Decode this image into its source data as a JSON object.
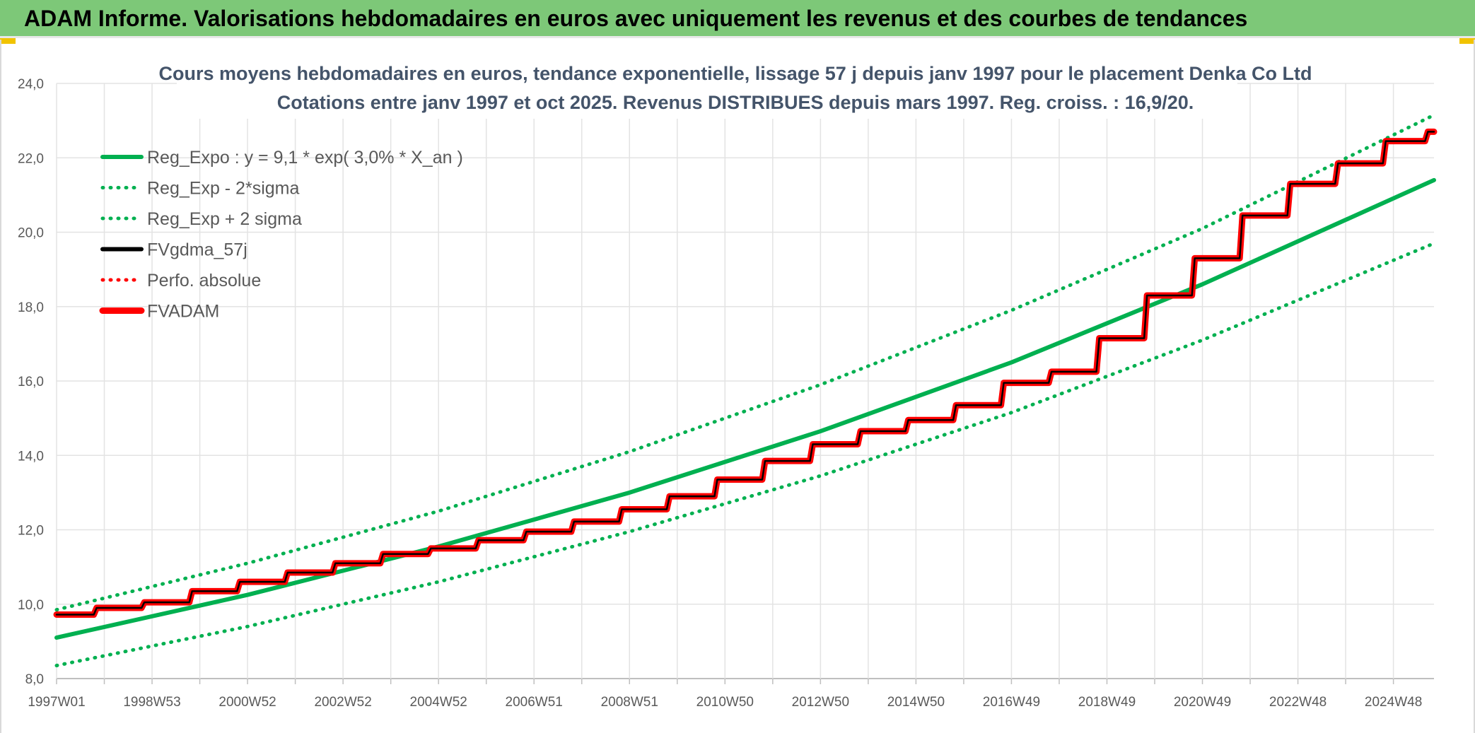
{
  "header": {
    "title": "ADAM Informe. Valorisations hebdomadaires en euros avec uniquement les revenus et des courbes de tendances"
  },
  "chart_data": {
    "type": "line",
    "title_line1": "Cours moyens hebdomadaires en euros, tendance exponentielle, lissage 57 j depuis janv 1997 pour le placement Denka Co Ltd",
    "title_line2": "Cotations entre janv 1997 et oct 2025. Revenus DISTRIBUES depuis mars 1997. Reg. croiss. : 16,9/20.",
    "xlabel": "",
    "ylabel": "",
    "ylim": [
      8.0,
      24.0
    ],
    "yticks": [
      "8,0",
      "10,0",
      "12,0",
      "14,0",
      "16,0",
      "18,0",
      "20,0",
      "22,0",
      "24,0"
    ],
    "xticks": [
      "1997W01",
      "1998W53",
      "2000W52",
      "2002W52",
      "2004W52",
      "2006W51",
      "2008W51",
      "2010W50",
      "2012W50",
      "2014W50",
      "2016W49",
      "2018W49",
      "2020W49",
      "2022W48",
      "2024W48"
    ],
    "xrange_years": [
      1997.0,
      2025.85
    ],
    "grid": true,
    "legend_position": "top-left",
    "colors": {
      "green": "#00b050",
      "black": "#000000",
      "red": "#ff0000"
    },
    "series": [
      {
        "name": "Reg_Expo : y = 9,1 * exp( 3,0% *  X_an )",
        "style": "solid",
        "color": "#00b050",
        "x": [
          1997.0,
          2001.0,
          2005.0,
          2009.0,
          2013.0,
          2017.0,
          2021.0,
          2025.85
        ],
        "values": [
          9.1,
          10.25,
          11.55,
          13.0,
          14.65,
          16.5,
          18.6,
          21.4
        ]
      },
      {
        "name": "Reg_Exp - 2*sigma",
        "style": "dotted",
        "color": "#00b050",
        "x": [
          1997.0,
          2001.0,
          2005.0,
          2009.0,
          2013.0,
          2017.0,
          2021.0,
          2025.85
        ],
        "values": [
          8.35,
          9.4,
          10.6,
          11.95,
          13.45,
          15.15,
          17.1,
          19.7
        ]
      },
      {
        "name": "Reg_Exp + 2 sigma",
        "style": "dotted",
        "color": "#00b050",
        "x": [
          1997.0,
          2001.0,
          2005.0,
          2009.0,
          2013.0,
          2017.0,
          2021.0,
          2025.85
        ],
        "values": [
          9.85,
          11.1,
          12.5,
          14.1,
          15.9,
          17.9,
          20.1,
          23.15
        ]
      },
      {
        "name": "FVgdma_57j",
        "style": "solid",
        "color": "#000000",
        "x": [
          1997.0,
          1998.0,
          1999.0,
          2000.0,
          2001.0,
          2002.0,
          2003.0,
          2004.0,
          2005.0,
          2006.0,
          2007.0,
          2008.0,
          2009.0,
          2010.0,
          2011.0,
          2012.0,
          2013.0,
          2014.0,
          2015.0,
          2016.0,
          2017.0,
          2018.0,
          2019.0,
          2020.0,
          2021.0,
          2022.0,
          2023.0,
          2024.0,
          2025.0,
          2025.85
        ],
        "values": [
          9.72,
          9.9,
          10.05,
          10.35,
          10.6,
          10.85,
          11.1,
          11.35,
          11.5,
          11.72,
          11.95,
          12.22,
          12.55,
          12.9,
          13.35,
          13.85,
          14.3,
          14.65,
          14.95,
          15.35,
          15.95,
          16.25,
          17.15,
          18.3,
          19.3,
          20.45,
          21.3,
          21.85,
          22.45,
          22.7
        ]
      },
      {
        "name": "Perfo. absolue",
        "style": "dotted",
        "color": "#ff0000",
        "x": [
          1997.0,
          1998.0,
          1999.0,
          2000.0,
          2001.0,
          2002.0,
          2003.0,
          2004.0,
          2005.0,
          2006.0,
          2007.0,
          2008.0,
          2009.0,
          2010.0,
          2011.0,
          2012.0,
          2013.0,
          2014.0,
          2015.0,
          2016.0,
          2017.0,
          2018.0,
          2019.0,
          2020.0,
          2021.0,
          2022.0,
          2023.0,
          2024.0,
          2025.0,
          2025.85
        ],
        "values": [
          9.72,
          9.9,
          10.05,
          10.35,
          10.6,
          10.85,
          11.1,
          11.35,
          11.5,
          11.72,
          11.95,
          12.22,
          12.55,
          12.9,
          13.35,
          13.85,
          14.3,
          14.65,
          14.95,
          15.35,
          15.95,
          16.25,
          17.15,
          18.3,
          19.3,
          20.45,
          21.3,
          21.85,
          22.45,
          22.7
        ]
      },
      {
        "name": "FVADAM",
        "style": "solid-thick",
        "color": "#ff0000",
        "x": [
          1997.0,
          1998.0,
          1999.0,
          2000.0,
          2001.0,
          2002.0,
          2003.0,
          2004.0,
          2005.0,
          2006.0,
          2007.0,
          2008.0,
          2009.0,
          2010.0,
          2011.0,
          2012.0,
          2013.0,
          2014.0,
          2015.0,
          2016.0,
          2017.0,
          2018.0,
          2019.0,
          2020.0,
          2021.0,
          2022.0,
          2023.0,
          2024.0,
          2025.0,
          2025.85
        ],
        "values": [
          9.72,
          9.9,
          10.05,
          10.35,
          10.6,
          10.85,
          11.1,
          11.35,
          11.5,
          11.72,
          11.95,
          12.22,
          12.55,
          12.9,
          13.35,
          13.85,
          14.3,
          14.65,
          14.95,
          15.35,
          15.95,
          16.25,
          17.15,
          18.3,
          19.3,
          20.45,
          21.3,
          21.85,
          22.45,
          22.7
        ]
      }
    ]
  }
}
